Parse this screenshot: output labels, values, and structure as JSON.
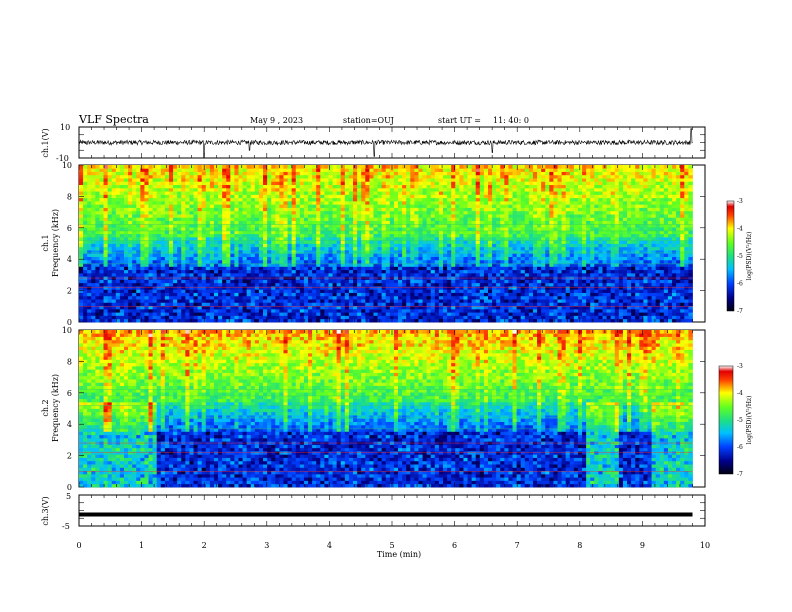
{
  "header": {
    "title": "VLF Spectra",
    "date": "May 9 , 2023",
    "station": "station=OUJ",
    "start_label": "start UT =",
    "start_time": "11: 40: 0"
  },
  "chart_data": [
    {
      "type": "line",
      "panel": "ch1-waveform",
      "ylabel": "ch.1(V)",
      "ylim": [
        -10,
        10
      ],
      "yticks": [
        "10",
        "-10"
      ],
      "xlim": [
        0,
        10
      ],
      "baseline": 0,
      "noise_amplitude": 1.5,
      "spikes": [
        {
          "x": 0.13,
          "y": -1.2
        },
        {
          "x": 2.0,
          "y": -9.5
        },
        {
          "x": 2.72,
          "y": -5.0
        },
        {
          "x": 4.72,
          "y": -9.0
        },
        {
          "x": 6.6,
          "y": -6.5
        },
        {
          "x": 9.78,
          "y": 9.0
        }
      ]
    },
    {
      "type": "heatmap",
      "panel": "ch1-spectrogram",
      "ylabel": "ch.1",
      "ylabel2": "Frequency (kHz)",
      "ylim": [
        0,
        10
      ],
      "yticks": [
        "0",
        "2",
        "4",
        "6",
        "8",
        "10"
      ],
      "xlim": [
        0,
        9.8
      ],
      "colorbar": {
        "label": "log(PSD)(V²/Hz)",
        "range": [
          -7,
          -3
        ],
        "ticks": [
          "-3",
          "-4",
          "-5",
          "-6",
          "-7"
        ],
        "colormap": "jet-with-black"
      }
    },
    {
      "type": "heatmap",
      "panel": "ch2-spectrogram",
      "ylabel": "ch.2",
      "ylabel2": "Frequency (kHz)",
      "ylim": [
        0,
        10
      ],
      "yticks": [
        "0",
        "2",
        "4",
        "6",
        "8",
        "10"
      ],
      "xlim": [
        0,
        9.8
      ],
      "colorbar": {
        "label": "log(PSD)(V²/Hz)",
        "range": [
          -7,
          -3
        ],
        "ticks": [
          "-3",
          "-4",
          "-5",
          "-6",
          "-7"
        ],
        "colormap": "jet-with-black"
      }
    },
    {
      "type": "line",
      "panel": "ch3-waveform",
      "ylabel": "ch.3(V)",
      "ylim": [
        -5,
        5
      ],
      "yticks": [
        "5",
        "0",
        "-5"
      ],
      "xlim": [
        0,
        10
      ],
      "values_constant": -1.3
    }
  ],
  "xaxis": {
    "label": "Time (min)",
    "range": [
      0,
      10
    ],
    "ticks": [
      "0",
      "1",
      "2",
      "3",
      "4",
      "5",
      "6",
      "7",
      "8",
      "9",
      "10"
    ]
  },
  "colors": {
    "waveform": "#000000",
    "background": "#ffffff"
  }
}
